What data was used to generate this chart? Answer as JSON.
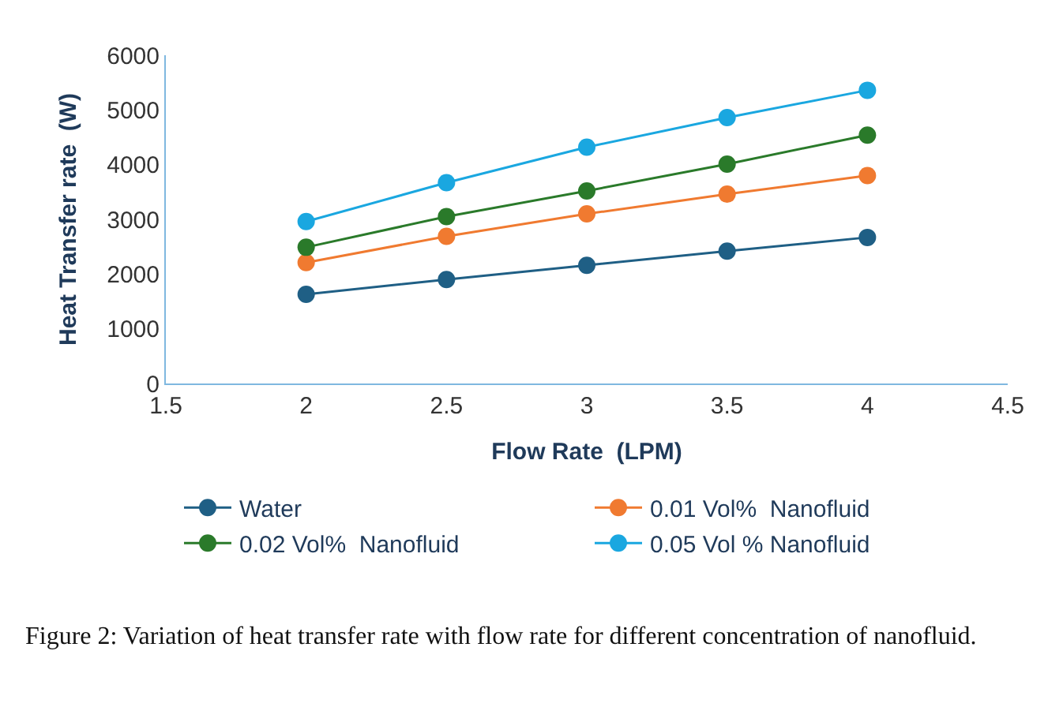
{
  "chart_data": {
    "type": "line",
    "xlabel": "Flow Rate  (LPM)",
    "ylabel": "Heat Transfer rate  (W)",
    "x": [
      2,
      2.5,
      3,
      3.5,
      4
    ],
    "series": [
      {
        "name": "Water",
        "color": "#1f5f85",
        "values": [
          1630,
          1900,
          2160,
          2420,
          2670
        ]
      },
      {
        "name": "0.01 Vol%  Nanofluid",
        "color": "#f07a30",
        "values": [
          2210,
          2690,
          3100,
          3460,
          3800
        ]
      },
      {
        "name": "0.02 Vol%  Nanofluid",
        "color": "#2a7a2a",
        "values": [
          2490,
          3050,
          3520,
          4010,
          4540
        ]
      },
      {
        "name": "0.05 Vol % Nanofluid",
        "color": "#1aa7e0",
        "values": [
          2960,
          3670,
          4320,
          4860,
          5360
        ]
      }
    ],
    "xlim": [
      1.5,
      4.5
    ],
    "xticks": [
      1.5,
      2,
      2.5,
      3,
      3.5,
      4,
      4.5
    ],
    "ylim": [
      0,
      6000
    ],
    "yticks": [
      0,
      1000,
      2000,
      3000,
      4000,
      5000,
      6000
    ],
    "legend": "bottom",
    "marker": "circle",
    "line_style": "solid",
    "annotations": [
      "Figure 2: Variation of heat transfer rate with flow rate for different concentration of nanofluid."
    ]
  }
}
